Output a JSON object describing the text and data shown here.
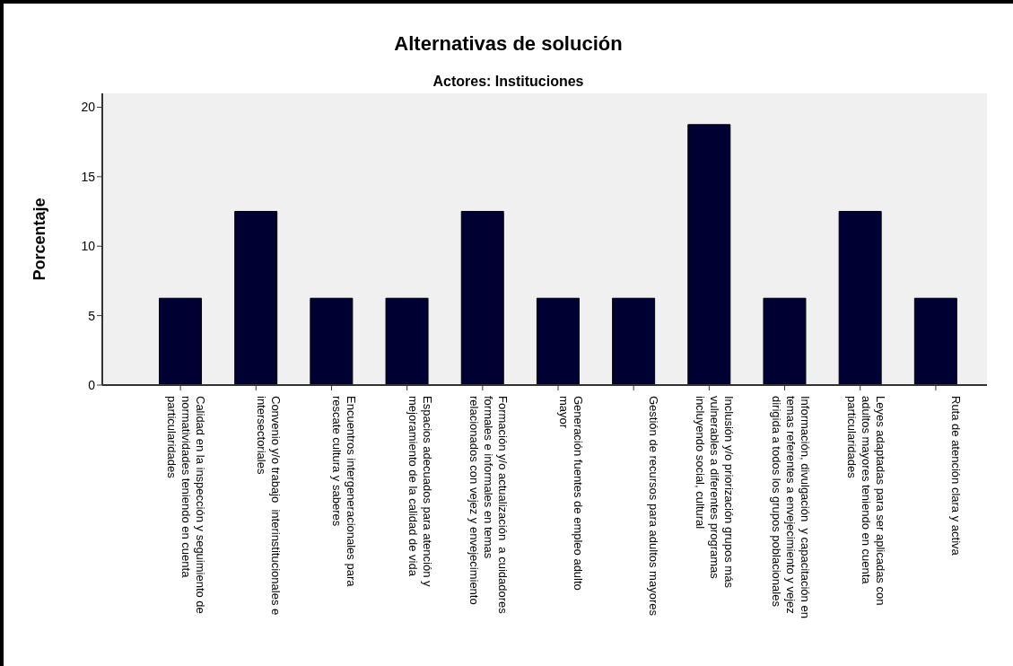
{
  "chart_data": {
    "type": "bar",
    "title": "Alternativas de solución",
    "subtitle": "Actores: Instituciones",
    "ylabel": "Porcentaje",
    "categories": [
      "Calidad en la inspección y seguimiento de\nnormatividades teniendo en cuenta\nparticularidades",
      "Convenio y/o trabajo  interinstitucionales e\nintersectoriales",
      "Encuentros intergeneracionales para\nrescate cultura y saberes",
      "Espacios adecuados para atención y\nmejoramiento de la calidad de vida",
      "Formación y/o actualización  a cuidadores\nformales e informales en temas\nrelacionados con vejez y envejecimiento",
      "Generación fuentes de empleo adulto\nmayor",
      "Gestión de recursos para adultos mayores",
      "Inclusión y/o priorización grupos más\nvulnerables a diferentes programas\nincluyendo social, cultural",
      "Información, divulgación  y capacitación en\ntemas referentes a envejecimiento y vejez\ndirigida a todos los grupos poblacionales",
      "Leyes adaptadas para ser aplicadas con\nadultos mayores teniendo en cuenta\nparticularidades",
      "Ruta de atención clara y activa"
    ],
    "values": [
      6.25,
      12.5,
      6.25,
      6.25,
      12.5,
      6.25,
      6.25,
      18.75,
      6.25,
      12.5,
      6.25
    ],
    "color": "#000033",
    "ylim": [
      0,
      21
    ],
    "yticks": [
      0,
      5,
      10,
      15,
      20
    ],
    "grid": false
  }
}
